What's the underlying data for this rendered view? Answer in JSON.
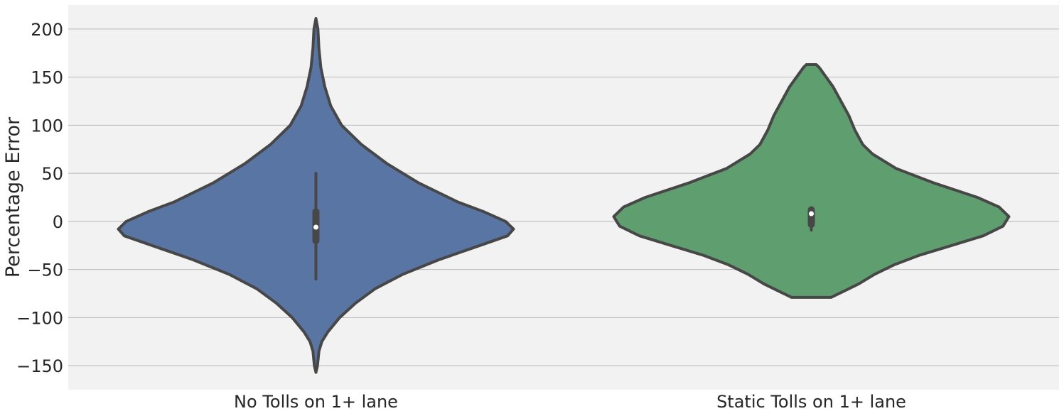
{
  "chart_data": {
    "type": "violin",
    "title": "",
    "xlabel": "",
    "ylabel": "Percentage Error",
    "ylim": [
      -175,
      225
    ],
    "yticks": [
      -150,
      -100,
      -50,
      0,
      50,
      100,
      150,
      200
    ],
    "ytick_labels": [
      "−150",
      "−100",
      "−50",
      "0",
      "50",
      "100",
      "150",
      "200"
    ],
    "grid": "horizontal",
    "categories": [
      "No Tolls on 1+ lane",
      "Static Tolls on 1+ lane"
    ],
    "violins": [
      {
        "category": "No Tolls on 1+ lane",
        "color": "#5975a4",
        "min": -157,
        "max": 211,
        "q1": -20,
        "median": -6,
        "q3": 10,
        "whisker_low": -60,
        "whisker_high": 50,
        "density_profile": [
          [
            211,
            0.0
          ],
          [
            200,
            0.01
          ],
          [
            180,
            0.015
          ],
          [
            160,
            0.025
          ],
          [
            140,
            0.045
          ],
          [
            120,
            0.075
          ],
          [
            100,
            0.13
          ],
          [
            80,
            0.23
          ],
          [
            60,
            0.36
          ],
          [
            40,
            0.52
          ],
          [
            20,
            0.72
          ],
          [
            10,
            0.85
          ],
          [
            0,
            0.96
          ],
          [
            -8,
            1.0
          ],
          [
            -15,
            0.97
          ],
          [
            -25,
            0.83
          ],
          [
            -40,
            0.62
          ],
          [
            -55,
            0.44
          ],
          [
            -70,
            0.3
          ],
          [
            -85,
            0.2
          ],
          [
            -100,
            0.12
          ],
          [
            -115,
            0.06
          ],
          [
            -125,
            0.03
          ],
          [
            -135,
            0.015
          ],
          [
            -150,
            0.008
          ],
          [
            -157,
            0.0
          ]
        ]
      },
      {
        "category": "Static Tolls on 1+ lane",
        "color": "#5f9e6e",
        "min": -79,
        "max": 163,
        "q1": -3,
        "median": 8,
        "q3": 12,
        "whisker_low": -9,
        "whisker_high": 13,
        "density_profile": [
          [
            163,
            0.025
          ],
          [
            160,
            0.04
          ],
          [
            150,
            0.075
          ],
          [
            140,
            0.11
          ],
          [
            125,
            0.15
          ],
          [
            110,
            0.19
          ],
          [
            95,
            0.22
          ],
          [
            80,
            0.26
          ],
          [
            70,
            0.31
          ],
          [
            55,
            0.43
          ],
          [
            40,
            0.62
          ],
          [
            25,
            0.84
          ],
          [
            15,
            0.95
          ],
          [
            5,
            1.0
          ],
          [
            -5,
            0.97
          ],
          [
            -15,
            0.87
          ],
          [
            -25,
            0.71
          ],
          [
            -35,
            0.55
          ],
          [
            -45,
            0.42
          ],
          [
            -55,
            0.32
          ],
          [
            -65,
            0.24
          ],
          [
            -72,
            0.17
          ],
          [
            -77,
            0.12
          ],
          [
            -79,
            0.1
          ]
        ]
      }
    ]
  }
}
